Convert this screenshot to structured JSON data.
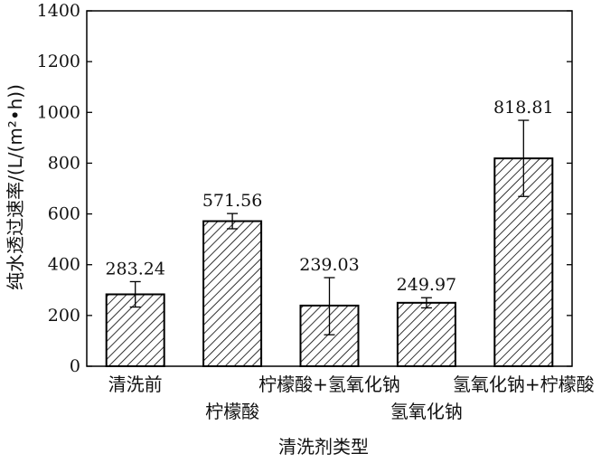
{
  "chart_data": {
    "type": "bar",
    "xlabel": "清洗剂类型",
    "ylabel": "纯水透过速率/(L/(m²•h))",
    "ylim": [
      0,
      1400
    ],
    "yticks": [
      0,
      200,
      400,
      600,
      800,
      1000,
      1200,
      1400
    ],
    "categories": [
      "清洗前",
      "柠檬酸",
      "柠檬酸+氢氧化钠",
      "氢氧化钠",
      "氢氧化钠+柠檬酸"
    ],
    "category_label_row": [
      "top",
      "bottom",
      "top",
      "bottom",
      "top"
    ],
    "values": [
      283.24,
      571.56,
      239.03,
      249.97,
      818.81
    ],
    "value_labels": [
      "283.24",
      "571.56",
      "239.03",
      "249.97",
      "818.81"
    ],
    "error_low": [
      50,
      30,
      115,
      20,
      150
    ],
    "error_high": [
      50,
      30,
      110,
      20,
      150
    ],
    "bar_fill": "hatched",
    "bar_color": "#000000",
    "grid": false
  }
}
